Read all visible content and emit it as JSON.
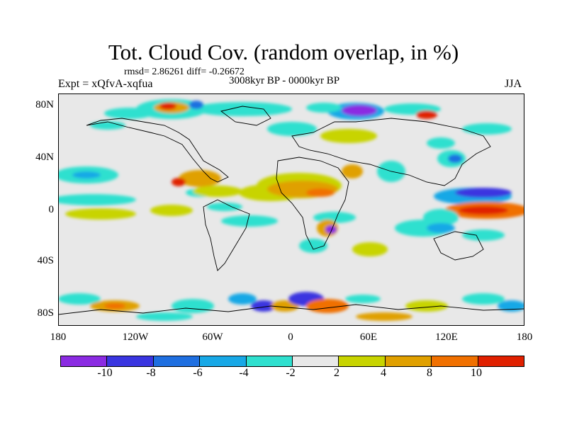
{
  "title": "Tot. Cloud Cov. (random overlap, in %)",
  "stats": "rmsd= 2.86261 diff= -0.26672",
  "experiment": "Expt = xQfvA-xqfua",
  "period": "3008kyr BP - 0000kyr BP",
  "season": "JJA",
  "lat_ticks": [
    "80N",
    "40N",
    "0",
    "40S",
    "80S"
  ],
  "lon_ticks": [
    "180",
    "120W",
    "60W",
    "0",
    "60E",
    "120E",
    "180"
  ],
  "colorbar": {
    "colors": [
      "#8b2be2",
      "#3a35e0",
      "#1f6fe0",
      "#18a8e6",
      "#2fe0cf",
      "#e8e8e8",
      "#c8d400",
      "#e0a000",
      "#f07000",
      "#e02000"
    ],
    "labels": [
      "-10",
      "-8",
      "-6",
      "-4",
      "-2",
      "2",
      "4",
      "8",
      "10"
    ]
  }
}
